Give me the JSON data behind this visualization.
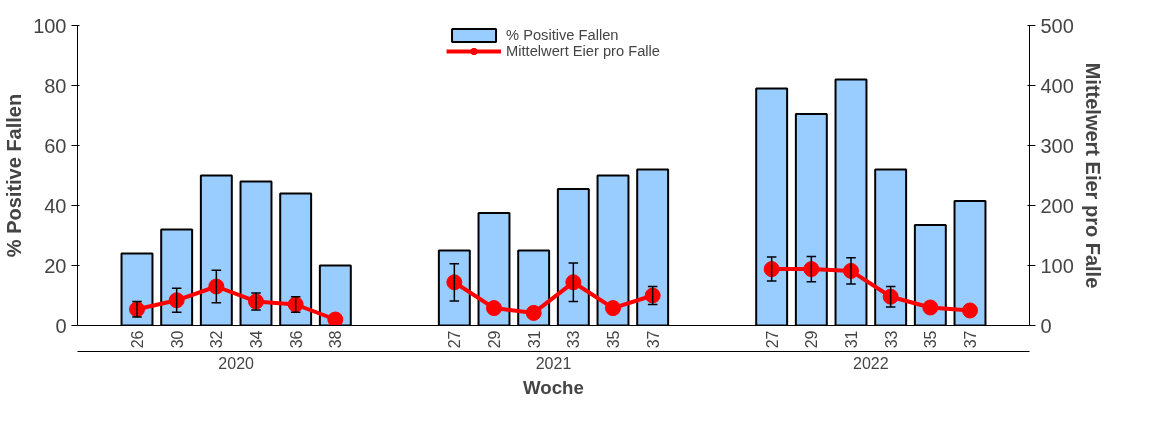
{
  "chart_data": {
    "type": "bar",
    "xlabel": "Woche",
    "ylabel": "% Positive Fallen",
    "y2label": "Mittelwert Eier pro Falle",
    "categories": [
      null,
      "26",
      "30",
      "32",
      "34",
      "36",
      "38",
      null,
      null,
      "27",
      "29",
      "31",
      "33",
      "35",
      "37",
      null,
      null,
      "27",
      "29",
      "31",
      "33",
      "35",
      "37",
      null
    ],
    "series": [
      {
        "name": "% Positive Fallen",
        "color": "#99ccff",
        "values": [
          null,
          24,
          32,
          50,
          48,
          44,
          20,
          null,
          null,
          25,
          37.5,
          25,
          45.5,
          50,
          52,
          null,
          null,
          79,
          70.5,
          82,
          52,
          33.5,
          41.5,
          null
        ]
      },
      {
        "name": "Mittelwert Eier pro Falle",
        "type": "line",
        "axis": "y2",
        "color": "#ff0000",
        "values": [
          null,
          27,
          42,
          65,
          40,
          35,
          10,
          null,
          null,
          72,
          29,
          21,
          72,
          29,
          50,
          null,
          null,
          94,
          94,
          91,
          48,
          30,
          25,
          null
        ],
        "errors": [
          null,
          13,
          20,
          27,
          14,
          13,
          null,
          null,
          null,
          31,
          null,
          null,
          32,
          null,
          15,
          null,
          null,
          20,
          21,
          22,
          17,
          null,
          null,
          null
        ]
      }
    ],
    "annotations": [
      "2020",
      "2021",
      "2022"
    ],
    "ylim": [
      0,
      100
    ],
    "yticks": [
      0,
      20,
      40,
      60,
      80,
      100
    ],
    "y2lim": [
      0,
      500
    ],
    "y2ticks": [
      0,
      100,
      200,
      300,
      400,
      500
    ],
    "marker": "circle",
    "legend": "top",
    "grid": false
  }
}
